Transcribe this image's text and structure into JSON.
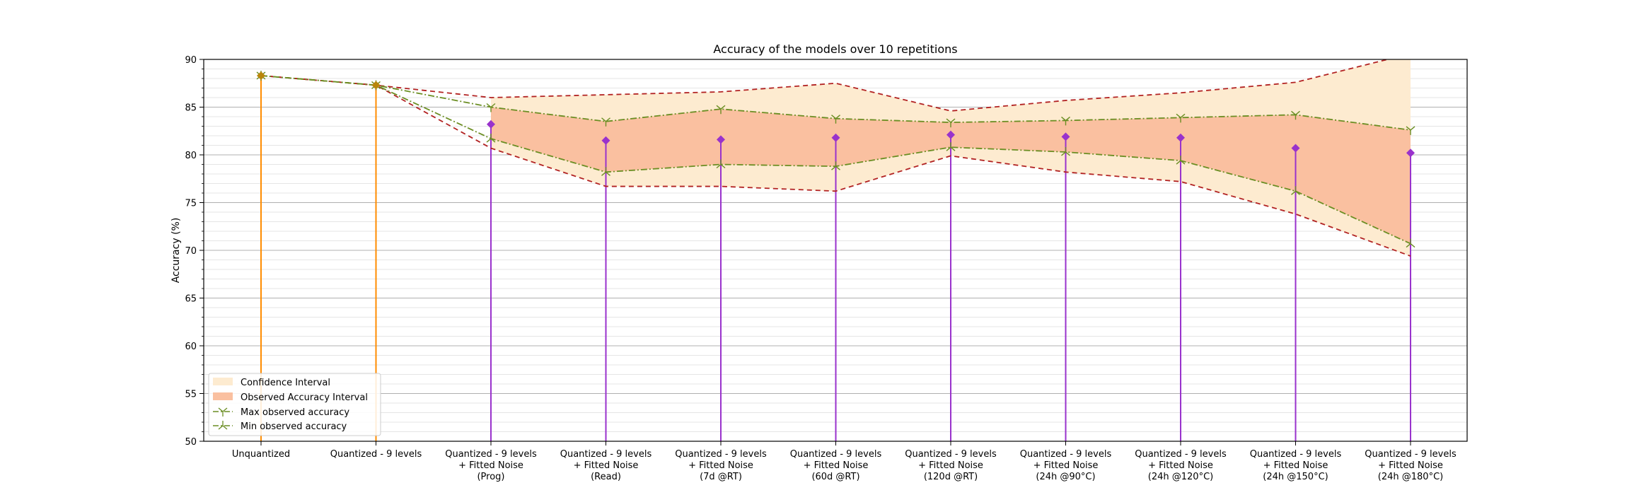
{
  "chart_data": {
    "type": "line",
    "title": "Accuracy of the models over 10 repetitions",
    "xlabel": "",
    "ylabel": "Accuracy (%)",
    "ylim": [
      50,
      90
    ],
    "yticks": [
      50,
      55,
      60,
      65,
      70,
      75,
      80,
      85,
      90
    ],
    "grid": "horizontal major and minor",
    "legend_position": "lower-left",
    "categories": [
      [
        "Unquantized"
      ],
      [
        "Quantized - 9 levels"
      ],
      [
        "Quantized - 9 levels",
        "+ Fitted Noise",
        "(Prog)"
      ],
      [
        "Quantized - 9 levels",
        "+ Fitted Noise",
        "(Read)"
      ],
      [
        "Quantized - 9 levels",
        "+ Fitted Noise",
        "(7d @RT)"
      ],
      [
        "Quantized - 9 levels",
        "+ Fitted Noise",
        "(60d @RT)"
      ],
      [
        "Quantized - 9 levels",
        "+ Fitted Noise",
        "(120d @RT)"
      ],
      [
        "Quantized - 9 levels",
        "+ Fitted Noise",
        "(24h @90°C)"
      ],
      [
        "Quantized - 9 levels",
        "+ Fitted Noise",
        "(24h @120°C)"
      ],
      [
        "Quantized - 9 levels",
        "+ Fitted Noise",
        "(24h @150°C)"
      ],
      [
        "Quantized - 9 levels",
        "+ Fitted Noise",
        "(24h @180°C)"
      ]
    ],
    "series": [
      {
        "name": "Max observed accuracy",
        "values": [
          88.3,
          87.3,
          85.0,
          83.5,
          84.8,
          83.8,
          83.4,
          83.6,
          83.9,
          84.2,
          82.6
        ],
        "color": "#6b8e23"
      },
      {
        "name": "Min observed accuracy",
        "values": [
          88.3,
          87.3,
          81.7,
          78.2,
          79.0,
          78.8,
          80.8,
          80.3,
          79.4,
          76.2,
          70.7
        ],
        "color": "#6b8e23"
      }
    ],
    "confidence_interval": {
      "name": "Confidence Interval",
      "upper": [
        88.3,
        87.3,
        86.0,
        86.3,
        86.6,
        87.5,
        84.6,
        85.7,
        86.5,
        87.6,
        90.6
      ],
      "lower": [
        88.3,
        87.3,
        80.7,
        76.7,
        76.7,
        76.2,
        79.9,
        78.2,
        77.2,
        73.8,
        69.4
      ],
      "fill_color": "#fdebd0",
      "line_color": "#b22222"
    },
    "observed_interval": {
      "name": "Observed Accuracy Interval",
      "fill_color": "#fac0a0"
    },
    "stems": {
      "values": [
        88.3,
        87.3,
        83.2,
        81.5,
        81.6,
        81.8,
        82.1,
        81.9,
        81.8,
        80.7,
        80.2
      ],
      "colors": [
        "#ff8c00",
        "#ff8c00",
        "#9932cc",
        "#9932cc",
        "#9932cc",
        "#9932cc",
        "#9932cc",
        "#9932cc",
        "#9932cc",
        "#9932cc",
        "#9932cc"
      ],
      "marker_colors": [
        "#b8860b",
        "#b8860b",
        "#9932cc",
        "#9932cc",
        "#9932cc",
        "#9932cc",
        "#9932cc",
        "#9932cc",
        "#9932cc",
        "#9932cc",
        "#9932cc"
      ]
    }
  }
}
